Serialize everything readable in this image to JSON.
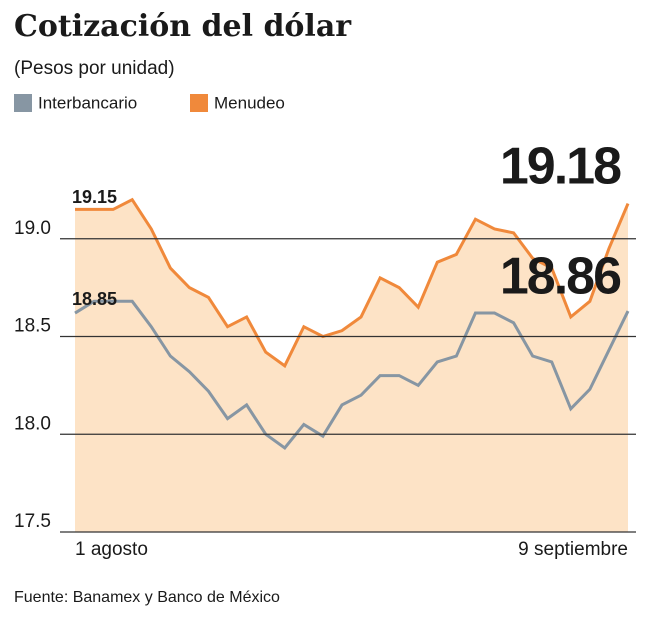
{
  "chart_data": {
    "type": "area",
    "title": "Cotización del dólar",
    "subtitle": "(Pesos por unidad)",
    "source": "Fuente: Banamex y Banco de México",
    "categories": [
      "1 agosto",
      null,
      null,
      null,
      null,
      null,
      null,
      null,
      null,
      null,
      null,
      null,
      null,
      null,
      null,
      null,
      null,
      null,
      null,
      null,
      null,
      null,
      null,
      null,
      null,
      null,
      null,
      null,
      null,
      "9 septiembre"
    ],
    "series": [
      {
        "name": "Interbancario",
        "color": "#8796a3",
        "fill": "#cfd8de",
        "values": [
          18.62,
          18.68,
          18.68,
          18.68,
          18.55,
          18.4,
          18.32,
          18.22,
          18.08,
          18.15,
          18.0,
          17.93,
          18.05,
          17.99,
          18.15,
          18.2,
          18.3,
          18.3,
          18.25,
          18.37,
          18.4,
          18.62,
          18.62,
          18.57,
          18.4,
          18.37,
          18.13,
          18.23,
          18.43,
          18.63
        ]
      },
      {
        "name": "Menudeo",
        "color": "#f0893b",
        "fill": "#fde3c6",
        "values": [
          19.15,
          19.15,
          19.15,
          19.2,
          19.05,
          18.85,
          18.75,
          18.7,
          18.55,
          18.6,
          18.42,
          18.35,
          18.55,
          18.5,
          18.53,
          18.6,
          18.8,
          18.75,
          18.65,
          18.88,
          18.92,
          19.1,
          19.05,
          19.03,
          18.9,
          18.85,
          18.6,
          18.68,
          18.95,
          19.18
        ]
      }
    ],
    "annotations": [
      "19.15",
      "18.85",
      "19.18",
      "18.86"
    ],
    "ylim": [
      17.5,
      19.5
    ],
    "yticks": [
      17.5,
      {
        "value": 18.0,
        "label": "18.0"
      },
      18.5,
      {
        "value": 19.0,
        "label": "19.0"
      }
    ],
    "grid": true
  }
}
